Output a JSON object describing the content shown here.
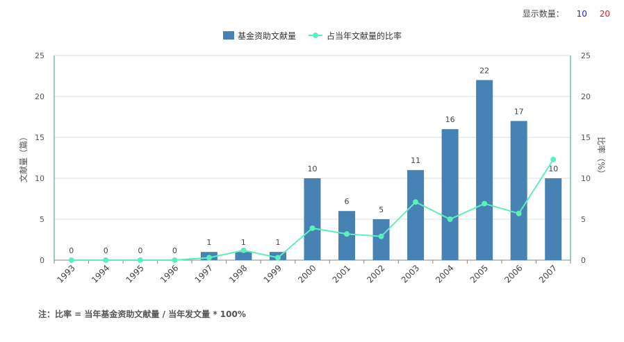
{
  "controls": {
    "label": "显示数量：",
    "options": [
      {
        "label": "10",
        "color": "#1a1aff"
      },
      {
        "label": "20",
        "color": "#e02020"
      }
    ]
  },
  "footnote": "注：比率 = 当年基金资助文献量 / 当年发文量 * 100%",
  "chart_data": {
    "type": "bar",
    "categories": [
      "1993",
      "1994",
      "1995",
      "1996",
      "1997",
      "1998",
      "1999",
      "2000",
      "2001",
      "2002",
      "2003",
      "2004",
      "2005",
      "2006",
      "2007"
    ],
    "series": [
      {
        "name": "基金资助文献量",
        "type": "bar",
        "axis": "left",
        "color": "#4682b4",
        "values": [
          0,
          0,
          0,
          0,
          1,
          1,
          1,
          10,
          6,
          5,
          11,
          16,
          22,
          17,
          10
        ],
        "labels": [
          "0",
          "0",
          "0",
          "0",
          "1",
          "1",
          "1",
          "10",
          "6",
          "5",
          "11",
          "16",
          "22",
          "17",
          "10"
        ]
      },
      {
        "name": "占当年文献量的比率",
        "type": "line",
        "axis": "right",
        "color": "#5cf0b8",
        "values": [
          0,
          0,
          0,
          0,
          0.3,
          1.2,
          0.3,
          3.9,
          3.2,
          2.9,
          7.1,
          5.0,
          6.9,
          5.7,
          12.3
        ]
      }
    ],
    "ylabel": "文献量（篇）",
    "y2label": "比率（%）",
    "ylim": [
      0,
      25
    ],
    "y2lim": [
      0,
      25
    ],
    "yticks": [
      "0",
      "5",
      "10",
      "15",
      "20",
      "25"
    ],
    "y2ticks": [
      "0",
      "5",
      "10",
      "15",
      "20",
      "25"
    ],
    "grid": true,
    "legend": "top-center"
  }
}
